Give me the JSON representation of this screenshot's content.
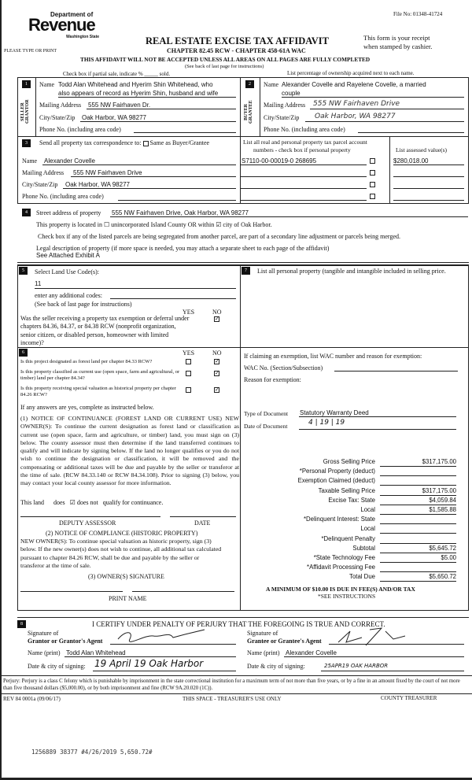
{
  "header": {
    "file_no": "File No: 01348-41724",
    "logo_dept": "Department of",
    "logo_word": "Revenue",
    "logo_state": "Washington State",
    "type_or_print": "PLEASE TYPE OR PRINT",
    "title": "REAL ESTATE EXCISE TAX AFFIDAVIT",
    "subtitle": "CHAPTER 82.45 RCW - CHAPTER 458-61A WAC",
    "receipt_1": "This form is your receipt",
    "receipt_2": "when stamped by cashier.",
    "warning": "THIS AFFIDAVIT WILL NOT BE ACCEPTED UNLESS ALL AREAS ON ALL PAGES ARE FULLY COMPLETED",
    "see_back": "(See back of last page for instructions)",
    "partial_sale": "Check box if partial sale, indicate % _____ sold.",
    "ownership_note": "List percentage of ownership acquired next to each name."
  },
  "seller": {
    "num": "1",
    "tag": "SELLER GRANTOR",
    "name_label": "Name",
    "name_1": "Todd Alan Whitehead and Hyerim Shin Whitehead, who",
    "name_2": "also appears of record as Hyerim Shin, husband and wife",
    "mail_label": "Mailing Address",
    "mail": "555 NW Fairhaven Dr.",
    "city_label": "City/State/Zip",
    "city": "Oak Harbor, WA 98277",
    "phone_label": "Phone No. (including area code)"
  },
  "buyer": {
    "num": "2",
    "tag": "BUYER GRANTEE",
    "name_label": "Name",
    "name_1": "Alexander Covelle and Rayelene Covelle, a married",
    "name_2": "couple",
    "mail_label": "Mailing Address",
    "mail": "555 NW Fairhaven Drive",
    "city_label": "City/State/Zip",
    "city": "Oak Harbor, WA 98277",
    "phone_label": "Phone No. (including area code)"
  },
  "correspondence": {
    "num": "3",
    "label": "Send all property tax correspondence to:",
    "same_as": "Same as Buyer/Grantee",
    "name_label": "Name",
    "name": "Alexander Covelle",
    "mail_label": "Mailing Address",
    "mail": "555 NW Fairhaven Drive",
    "city_label": "City/State/Zip",
    "city": "Oak Harbor, WA  98277",
    "phone_label": "Phone No. (including area code)",
    "parcel_header_1": "List all real and personal property tax parcel account",
    "parcel_header_2": "numbers - check box if personal property",
    "value_header": "List assessed value(s)",
    "parcels": [
      {
        "number": "S7110-00-00019-0  268695",
        "value": "$280,018.00"
      }
    ]
  },
  "property": {
    "num": "4",
    "street_label": "Street address of property",
    "street": "555 NW Fairhaven Drive, Oak Harbor, WA 98277",
    "located": "This property is located in ☐ unincorporated Island County OR within ☑ city of Oak Harbor.",
    "segregated": "Check box if any of the listed parcels are being segregated from another parcel, are part of a secondary line adjustment or parcels being merged.",
    "legal_label": "Legal description of property (if more space is needed, you may attach a separate sheet to each page of the affidavit)",
    "legal": "See Attached Exhibit A"
  },
  "land_use": {
    "num": "5",
    "label": "Select Land Use Code(s):",
    "code": "11",
    "additional": "enter any additional codes:",
    "see_back": "(See back of last page for instructions)",
    "yes": "YES",
    "no": "NO",
    "exemption_q": "Was the seller receiving a property tax exemption or deferral under chapters 84.36, 84.37, or 84.38 RCW (nonprofit organization, senior citizen, or disabled person, homeowner with limited income)?"
  },
  "section6": {
    "num": "6",
    "yes": "YES",
    "no": "NO",
    "q1": "Is this project designated as forest land per chapter 84.33 RCW?",
    "q2": "Is this property classified as current use (open space, farm and agricultural, or timber) land per chapter 84.34?",
    "q3": "Is this property receiving special valuation as historical property per chapter 84.26 RCW?",
    "if_yes": "If any answers are yes, complete as instructed below.",
    "notice1": "(1) NOTICE OF CONTINUANCE (FOREST LAND OR CURRENT USE) NEW OWNER(S): To continue the current designation as forest land or classification as current use (open space, farm and agriculture, or timber) land, you must sign on (3) below. The county assessor must then determine if the land transferred continues to qualify and will indicate by signing below. If the land no longer qualifies or you do not wish to continue the designation or classification, it will be removed and the compensating or additional taxes will be due and payable by the seller or transferor at the time of sale. (RCW 84.33.140 or RCW 84.34.108). Prior to signing (3) below, you may contact your local county assessor for more information.",
    "continuance": "This land      does   ☑ does not   qualify for continuance.",
    "deputy": "DEPUTY ASSESSOR",
    "date": "DATE",
    "notice2_title": "(2) NOTICE OF COMPLIANCE (HISTORIC PROPERTY)",
    "notice2": "NEW OWNER(S): To continue special valuation as historic property, sign (3) below. If the new owner(s) does not wish to continue, all additional tax calculated pursuant to chapter 84.26 RCW, shall be due and payable by the seller or transferor at the time of sale.",
    "owner_sig": "(3) OWNER(S) SIGNATURE",
    "print_name": "PRINT NAME"
  },
  "section7": {
    "num": "7",
    "label": "List all personal property (tangible and intangible included in selling price.",
    "exemption": "If claiming an exemption, list WAC number and reason for exemption:",
    "wac_label": "WAC No. (Section/Subsection)",
    "reason_label": "Reason for exemption:",
    "doc_type_label": "Type of Document",
    "doc_type": "Statutory Warranty Deed",
    "doc_date_label": "Date of Document",
    "doc_date": "4 | 19 | 19"
  },
  "tax": {
    "rows": [
      {
        "label": "Gross Selling Price",
        "value": "$317,175.00"
      },
      {
        "label": "*Personal Property (deduct)",
        "value": ""
      },
      {
        "label": "Exemption Claimed (deduct)",
        "value": ""
      },
      {
        "label": "Taxable Selling Price",
        "value": "$317,175.00"
      },
      {
        "label": "Excise Tax:  State",
        "value": "$4,059.84"
      },
      {
        "label": "Local",
        "value": "$1,585.88"
      },
      {
        "label": "*Delinquent Interest:  State",
        "value": ""
      },
      {
        "label": "Local",
        "value": ""
      },
      {
        "label": "*Delinquent Penalty",
        "value": ""
      },
      {
        "label": "Subtotal",
        "value": "$5,645.72"
      },
      {
        "label": "*State Technology Fee",
        "value": "$5.00"
      },
      {
        "label": "*Affidavit Processing Fee",
        "value": ""
      },
      {
        "label": "Total Due",
        "value": "$5,650.72"
      }
    ],
    "minimum": "A MINIMUM OF $10.00 IS DUE IN FEE(S) AND/OR TAX",
    "see_instr": "*SEE INSTRUCTIONS"
  },
  "certify": {
    "num": "8",
    "text": "I CERTIFY UNDER PENALTY OF PERJURY THAT THE FOREGOING IS TRUE AND CORRECT.",
    "sig_of": "Signature of",
    "grantor_agent": "Grantor or Grantor's Agent",
    "grantee_agent": "Grantee or Grantee's Agent",
    "name_print": "Name (print)",
    "grantor_name": "Todd Alan Whitehead",
    "grantee_name": "Alexander Covelle",
    "date_city": "Date & city of signing:",
    "grantor_date": "19 April 19  Oak Harbor",
    "grantee_date": "25APR19   OAK HARBOR"
  },
  "footer": {
    "perjury": "Perjury: Perjury is a class C felony which is punishable by imprisonment in the state correctional institution for a maximum term of not more than five years, or by a fine in an amount fixed by the court of not more than five thousand dollars ($5,000.00), or by both imprisonment and fine (RCW 9A.20.020 (1C)).",
    "rev": "REV 84 0001a (09/06/17)",
    "treasurer_use": "THIS SPACE - TREASURER'S USE ONLY",
    "county_treasurer": "COUNTY TREASURER",
    "stamp": "1256889 38377 #4/26/2019 5,650.72#"
  }
}
